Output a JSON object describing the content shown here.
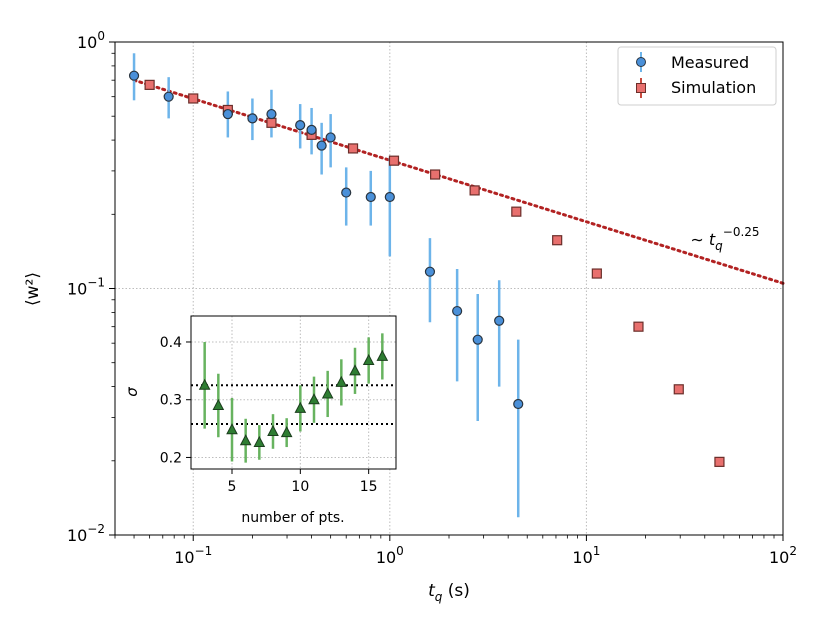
{
  "chart_data": [
    {
      "type": "scatter",
      "xscale": "log",
      "yscale": "log",
      "xlim": [
        0.04,
        100
      ],
      "ylim": [
        0.01,
        1
      ],
      "xlabel": "t_q (s)",
      "ylabel": "⟨w²⟩",
      "xticks": [
        {
          "value": 0.1,
          "base": "10",
          "exp": "−1"
        },
        {
          "value": 1,
          "base": "10",
          "exp": "0"
        },
        {
          "value": 10,
          "base": "10",
          "exp": "1"
        },
        {
          "value": 100,
          "base": "10",
          "exp": "2"
        }
      ],
      "yticks": [
        {
          "value": 0.01,
          "base": "10",
          "exp": "−2"
        },
        {
          "value": 0.1,
          "base": "10",
          "exp": "−1"
        },
        {
          "value": 1,
          "base": "10",
          "exp": "0"
        }
      ],
      "grid": true,
      "legend_position": "top-right",
      "series": [
        {
          "name": "Measured",
          "marker": "circle",
          "color": "#4a90d9",
          "errcolor": "#6db4ea",
          "points": [
            {
              "x": 0.05,
              "y": 0.73,
              "lo": 0.58,
              "hi": 0.9
            },
            {
              "x": 0.075,
              "y": 0.6,
              "lo": 0.49,
              "hi": 0.72
            },
            {
              "x": 0.15,
              "y": 0.51,
              "lo": 0.41,
              "hi": 0.63
            },
            {
              "x": 0.2,
              "y": 0.49,
              "lo": 0.4,
              "hi": 0.59
            },
            {
              "x": 0.25,
              "y": 0.51,
              "lo": 0.41,
              "hi": 0.64
            },
            {
              "x": 0.35,
              "y": 0.46,
              "lo": 0.37,
              "hi": 0.56
            },
            {
              "x": 0.4,
              "y": 0.44,
              "lo": 0.35,
              "hi": 0.54
            },
            {
              "x": 0.45,
              "y": 0.38,
              "lo": 0.29,
              "hi": 0.47
            },
            {
              "x": 0.5,
              "y": 0.41,
              "lo": 0.31,
              "hi": 0.51
            },
            {
              "x": 0.6,
              "y": 0.245,
              "lo": 0.18,
              "hi": 0.31
            },
            {
              "x": 0.8,
              "y": 0.235,
              "lo": 0.18,
              "hi": 0.3
            },
            {
              "x": 1.0,
              "y": 0.235,
              "lo": 0.135,
              "hi": 0.34
            },
            {
              "x": 1.6,
              "y": 0.117,
              "lo": 0.073,
              "hi": 0.16
            },
            {
              "x": 2.2,
              "y": 0.081,
              "lo": 0.042,
              "hi": 0.12
            },
            {
              "x": 2.8,
              "y": 0.062,
              "lo": 0.029,
              "hi": 0.095
            },
            {
              "x": 3.6,
              "y": 0.074,
              "lo": 0.04,
              "hi": 0.108
            },
            {
              "x": 4.5,
              "y": 0.034,
              "lo": 0.0118,
              "hi": 0.062
            }
          ]
        },
        {
          "name": "Simulation",
          "marker": "square",
          "color": "#e8706e",
          "points": [
            {
              "x": 0.06,
              "y": 0.67
            },
            {
              "x": 0.1,
              "y": 0.59
            },
            {
              "x": 0.15,
              "y": 0.53
            },
            {
              "x": 0.25,
              "y": 0.47
            },
            {
              "x": 0.4,
              "y": 0.42
            },
            {
              "x": 0.65,
              "y": 0.37
            },
            {
              "x": 1.05,
              "y": 0.33
            },
            {
              "x": 1.7,
              "y": 0.29
            },
            {
              "x": 2.7,
              "y": 0.25
            },
            {
              "x": 4.4,
              "y": 0.205
            },
            {
              "x": 7.1,
              "y": 0.157
            },
            {
              "x": 11.3,
              "y": 0.115
            },
            {
              "x": 18.4,
              "y": 0.07
            },
            {
              "x": 29.5,
              "y": 0.039
            },
            {
              "x": 47.5,
              "y": 0.0198
            }
          ]
        },
        {
          "name": "fit",
          "type": "line",
          "style": "dotted",
          "color": "#b22222",
          "x": [
            0.05,
            100
          ],
          "y": [
            0.7,
            0.105
          ]
        }
      ],
      "annotations": [
        {
          "text": "∼ t",
          "sub": "q",
          "sup": "−0.25",
          "x": 35,
          "y": 0.16,
          "color": "#b22222"
        }
      ]
    },
    {
      "type": "scatter",
      "xlim": [
        2,
        17
      ],
      "ylim": [
        0.18,
        0.445
      ],
      "xlabel": "number of pts.",
      "ylabel": "σ",
      "xticks": [
        5,
        10,
        15
      ],
      "yticks": [
        0.2,
        0.3,
        0.4
      ],
      "grid": true,
      "hlines": [
        0.325,
        0.258
      ],
      "series": [
        {
          "marker": "triangle",
          "color": "#2e7d32",
          "errcolor": "#67b35f",
          "points": [
            {
              "x": 3,
              "y": 0.325,
              "err": 0.075
            },
            {
              "x": 4,
              "y": 0.29,
              "err": 0.055
            },
            {
              "x": 5,
              "y": 0.248,
              "err": 0.055
            },
            {
              "x": 6,
              "y": 0.229,
              "err": 0.038
            },
            {
              "x": 7,
              "y": 0.226,
              "err": 0.03
            },
            {
              "x": 8,
              "y": 0.245,
              "err": 0.03
            },
            {
              "x": 9,
              "y": 0.243,
              "err": 0.025
            },
            {
              "x": 10,
              "y": 0.285,
              "err": 0.04
            },
            {
              "x": 11,
              "y": 0.3,
              "err": 0.04
            },
            {
              "x": 12,
              "y": 0.31,
              "err": 0.04
            },
            {
              "x": 13,
              "y": 0.33,
              "err": 0.04
            },
            {
              "x": 14,
              "y": 0.35,
              "err": 0.04
            },
            {
              "x": 15,
              "y": 0.368,
              "err": 0.04
            },
            {
              "x": 16,
              "y": 0.375,
              "err": 0.04
            }
          ]
        }
      ]
    }
  ]
}
